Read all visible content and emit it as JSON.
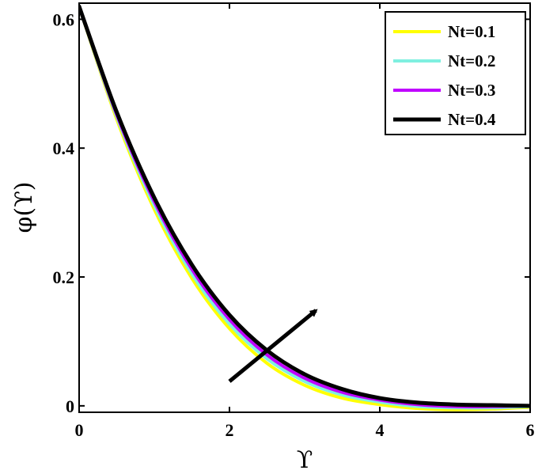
{
  "chart_data": {
    "type": "line",
    "title": "",
    "xlabel": "ϒ",
    "ylabel": "φ(ϒ)",
    "xlim": [
      0,
      6
    ],
    "ylim": [
      -0.01,
      0.625
    ],
    "xticks": [
      0,
      2,
      4,
      6
    ],
    "xtick_labels": [
      "0",
      "2",
      "4",
      "6"
    ],
    "yticks": [
      0,
      0.2,
      0.4,
      0.6
    ],
    "ytick_labels": [
      "0",
      "0.2",
      "0.4",
      "0.6"
    ],
    "grid": false,
    "legend_position": "top-right",
    "x": [
      0,
      0.5,
      1,
      1.5,
      2,
      2.5,
      3,
      3.5,
      4,
      4.5,
      5,
      5.5,
      6
    ],
    "series": [
      {
        "name": "Nt=0.1",
        "color": "#ffff00",
        "values": [
          0.62,
          0.445,
          0.305,
          0.198,
          0.12,
          0.066,
          0.032,
          0.012,
          0.002,
          -0.004,
          -0.006,
          -0.005,
          -0.002
        ]
      },
      {
        "name": "Nt=0.2",
        "color": "#7ff0e0",
        "values": [
          0.62,
          0.449,
          0.311,
          0.205,
          0.127,
          0.073,
          0.038,
          0.017,
          0.006,
          -0.001,
          -0.003,
          -0.003,
          -0.001
        ]
      },
      {
        "name": "Nt=0.3",
        "color": "#c000ff",
        "values": [
          0.62,
          0.452,
          0.317,
          0.212,
          0.134,
          0.079,
          0.043,
          0.021,
          0.009,
          0.002,
          -0.001,
          -0.001,
          0.0
        ]
      },
      {
        "name": "Nt=0.4",
        "color": "#000000",
        "values": [
          0.62,
          0.456,
          0.323,
          0.219,
          0.141,
          0.086,
          0.049,
          0.026,
          0.012,
          0.005,
          0.002,
          0.001,
          0.0
        ]
      }
    ],
    "annotations": [
      {
        "type": "arrow",
        "from": [
          2.0,
          0.038
        ],
        "to": [
          3.15,
          0.148
        ],
        "meaning": "increasing Nt"
      }
    ]
  }
}
